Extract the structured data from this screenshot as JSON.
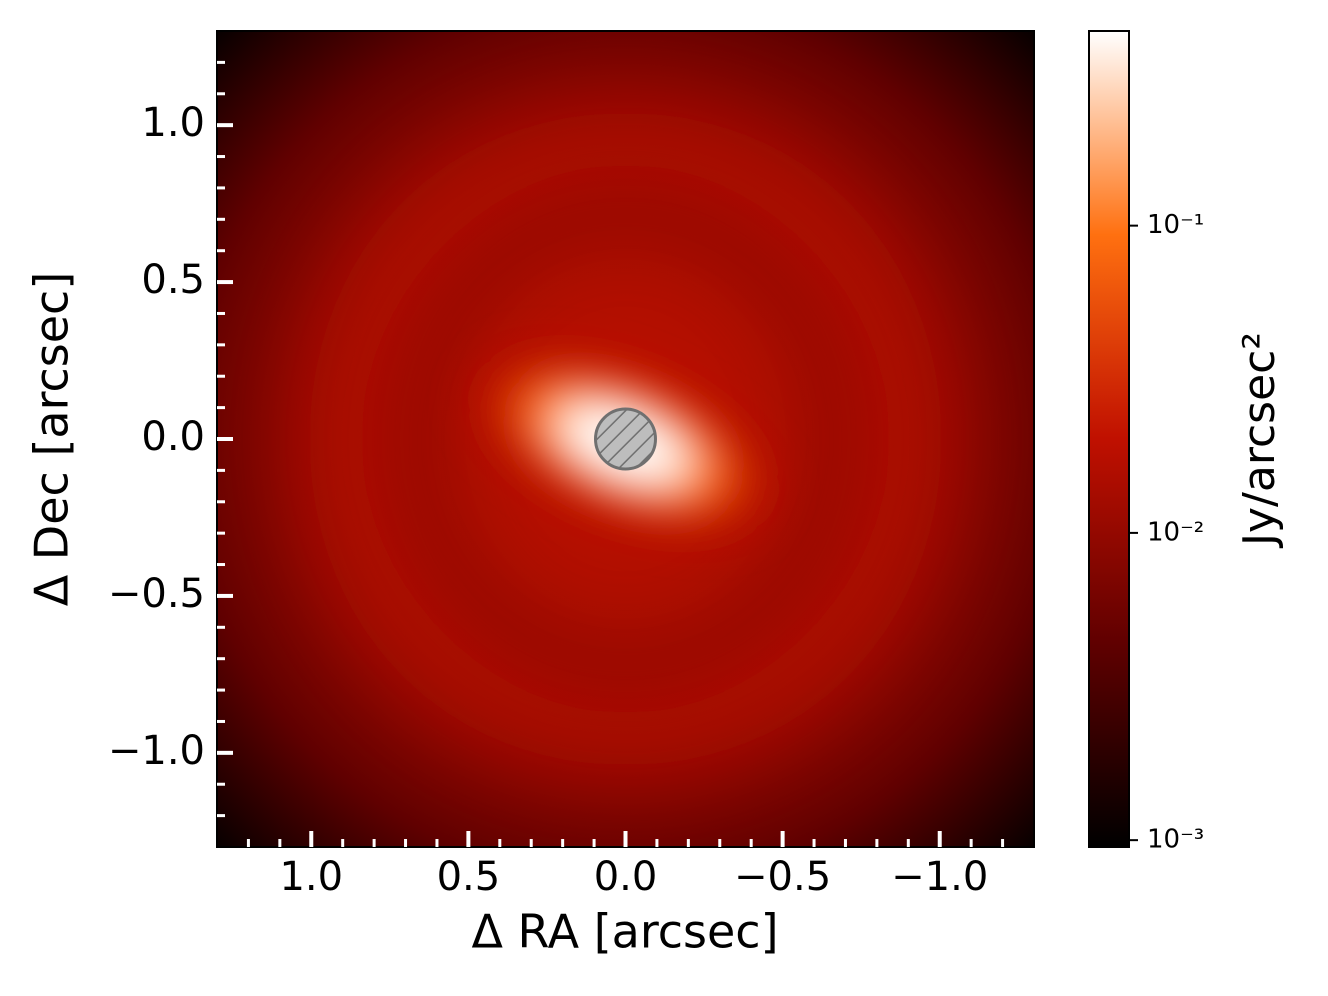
{
  "chart_data": {
    "type": "heatmap",
    "xlabel": "Δ RA [arcsec]",
    "ylabel": "Δ Dec [arcsec]",
    "xlim": [
      1.3,
      -1.3
    ],
    "ylim": [
      -1.3,
      1.3
    ],
    "xticks": [
      {
        "value": 1,
        "label": "1.0"
      },
      {
        "value": 0.5,
        "label": "0.5"
      },
      {
        "value": 0,
        "label": "0.0"
      },
      {
        "value": -0.5,
        "label": "−0.5"
      },
      {
        "value": -1,
        "label": "−1.0"
      }
    ],
    "yticks": [
      {
        "value": 1,
        "label": "1.0"
      },
      {
        "value": 0.5,
        "label": "0.5"
      },
      {
        "value": 0,
        "label": "0.0"
      },
      {
        "value": -0.5,
        "label": "−0.5"
      },
      {
        "value": -1,
        "label": "−1.0"
      }
    ],
    "xminorticks": [
      1.2,
      1.1,
      0.9,
      0.8,
      0.7,
      0.6,
      0.4,
      0.3,
      0.2,
      0.1,
      -0.1,
      -0.2,
      -0.3,
      -0.4,
      -0.6,
      -0.7,
      -0.8,
      -0.9,
      -1.1,
      -1.2
    ],
    "yminorticks": [
      1.2,
      1.1,
      0.9,
      0.8,
      0.7,
      0.6,
      0.4,
      0.3,
      0.2,
      0.1,
      -0.1,
      -0.2,
      -0.3,
      -0.4,
      -0.6,
      -0.7,
      -0.8,
      -0.9,
      -1.1,
      -1.2
    ],
    "colormap": [
      "#000000",
      "#600000",
      "#c01000",
      "#ff7010",
      "#ffffff"
    ],
    "colorbar": {
      "label": "Jy/arcsec²",
      "scale": "log",
      "lim": [
        0.00095,
        0.43
      ],
      "ticks": [
        {
          "value": 0.1,
          "label": "10⁻¹"
        },
        {
          "value": 0.01,
          "label": "10⁻²"
        },
        {
          "value": 0.001,
          "label": "10⁻³"
        }
      ]
    }
  }
}
